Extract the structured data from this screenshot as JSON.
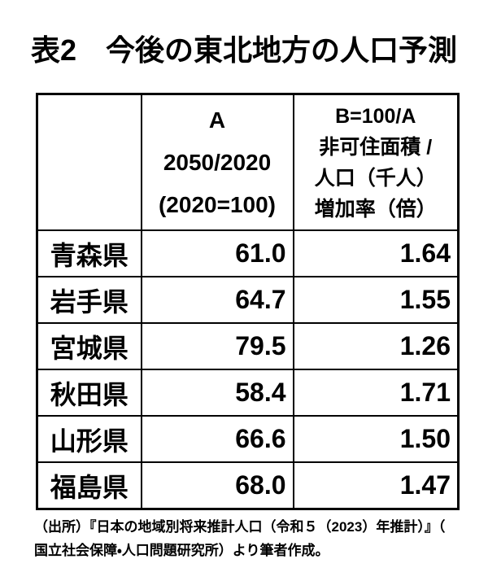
{
  "title": "表2　今後の東北地方の人口予測",
  "table": {
    "header": {
      "col1": "",
      "col2_lines": [
        "A",
        "2050/2020",
        "(2020=100)"
      ],
      "col3_lines": [
        "B=100/A",
        "非可住面積 /",
        "人口（千人）",
        "増加率（倍）"
      ]
    },
    "rows": [
      {
        "pref": "青森県",
        "a": "61.0",
        "b": "1.64"
      },
      {
        "pref": "岩手県",
        "a": "64.7",
        "b": "1.55"
      },
      {
        "pref": "宮城県",
        "a": "79.5",
        "b": "1.26"
      },
      {
        "pref": "秋田県",
        "a": "58.4",
        "b": "1.71"
      },
      {
        "pref": "山形県",
        "a": "66.6",
        "b": "1.50"
      },
      {
        "pref": "福島県",
        "a": "68.0",
        "b": "1.47"
      }
    ]
  },
  "source": {
    "line1": "（出所）『日本の地域別将来推計人口（令和５（2023）年推計）』（",
    "line2": "国立社会保障・人口問題研究所）より筆者作成。"
  },
  "chart_data": {
    "type": "table",
    "title": "表2　今後の東北地方の人口予測",
    "categories": [
      "青森県",
      "岩手県",
      "宮城県",
      "秋田県",
      "山形県",
      "福島県"
    ],
    "series": [
      {
        "name": "A 2050/2020 (2020=100)",
        "values": [
          61.0,
          64.7,
          79.5,
          58.4,
          66.6,
          68.0
        ]
      },
      {
        "name": "B=100/A 非可住面積/人口（千人）増加率（倍）",
        "values": [
          1.64,
          1.55,
          1.26,
          1.71,
          1.5,
          1.47
        ]
      }
    ],
    "source": "（出所）『日本の地域別将来推計人口（令和５（2023）年推計）』（国立社会保障・人口問題研究所）より筆者作成。"
  }
}
